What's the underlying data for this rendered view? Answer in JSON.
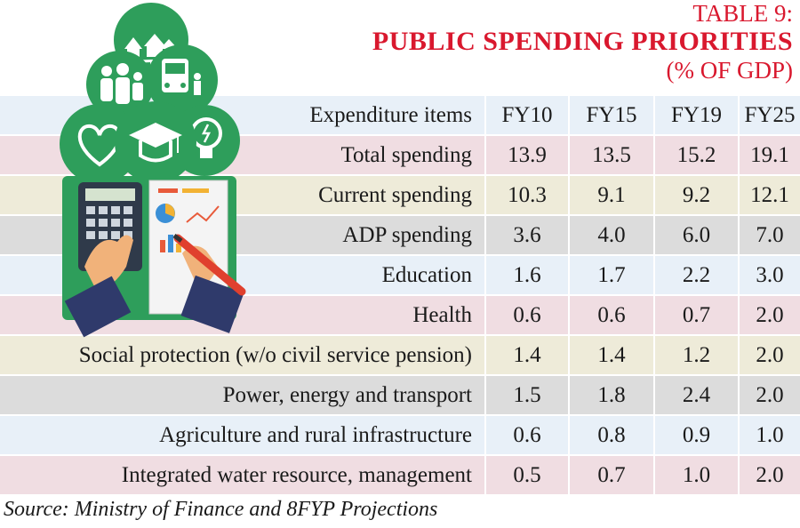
{
  "title": {
    "number": "TABLE 9:",
    "name": "PUBLIC SPENDING PRIORITIES",
    "unit": "(% OF GDP)"
  },
  "table": {
    "header": [
      "Expenditure items",
      "FY10",
      "FY15",
      "FY19",
      "FY25"
    ],
    "rows": [
      {
        "label": "Total spending",
        "values": [
          "13.9",
          "13.5",
          "15.2",
          "19.1"
        ],
        "shade": "pink"
      },
      {
        "label": "Current spending",
        "values": [
          "10.3",
          "9.1",
          "9.2",
          "12.1"
        ],
        "shade": "tan"
      },
      {
        "label": "ADP spending",
        "values": [
          "3.6",
          "4.0",
          "6.0",
          "7.0"
        ],
        "shade": "gray"
      },
      {
        "label": "Education",
        "values": [
          "1.6",
          "1.7",
          "2.2",
          "3.0"
        ],
        "shade": "blue"
      },
      {
        "label": "Health",
        "values": [
          "0.6",
          "0.6",
          "0.7",
          "2.0"
        ],
        "shade": "pink"
      },
      {
        "label": "Social protection (w/o civil service pension)",
        "values": [
          "1.4",
          "1.4",
          "1.2",
          "2.0"
        ],
        "shade": "tan"
      },
      {
        "label": "Power, energy and transport",
        "values": [
          "1.5",
          "1.8",
          "2.4",
          "2.0"
        ],
        "shade": "gray"
      },
      {
        "label": "Agriculture and rural infrastructure",
        "values": [
          "0.6",
          "0.8",
          "0.9",
          "1.0"
        ],
        "shade": "blue"
      },
      {
        "label": "Integrated water resource, management",
        "values": [
          "0.5",
          "0.7",
          "1.0",
          "2.0"
        ],
        "shade": "pink"
      }
    ]
  },
  "source": "Source: Ministry of Finance and 8FYP Projections",
  "colors": {
    "title": "#d9182e",
    "icon_green": "#2e9e5b",
    "row_blue": "#e8f0f8",
    "row_pink": "#f0dde2",
    "row_tan": "#eeebd9",
    "row_gray": "#dcdcdc"
  },
  "illustration": {
    "icons": [
      "village-icon",
      "family-icon",
      "bus-icon",
      "heart-icon",
      "graduation-cap-icon",
      "lightbulb-icon",
      "calculator-icon",
      "report-icon",
      "pen-icon"
    ]
  }
}
